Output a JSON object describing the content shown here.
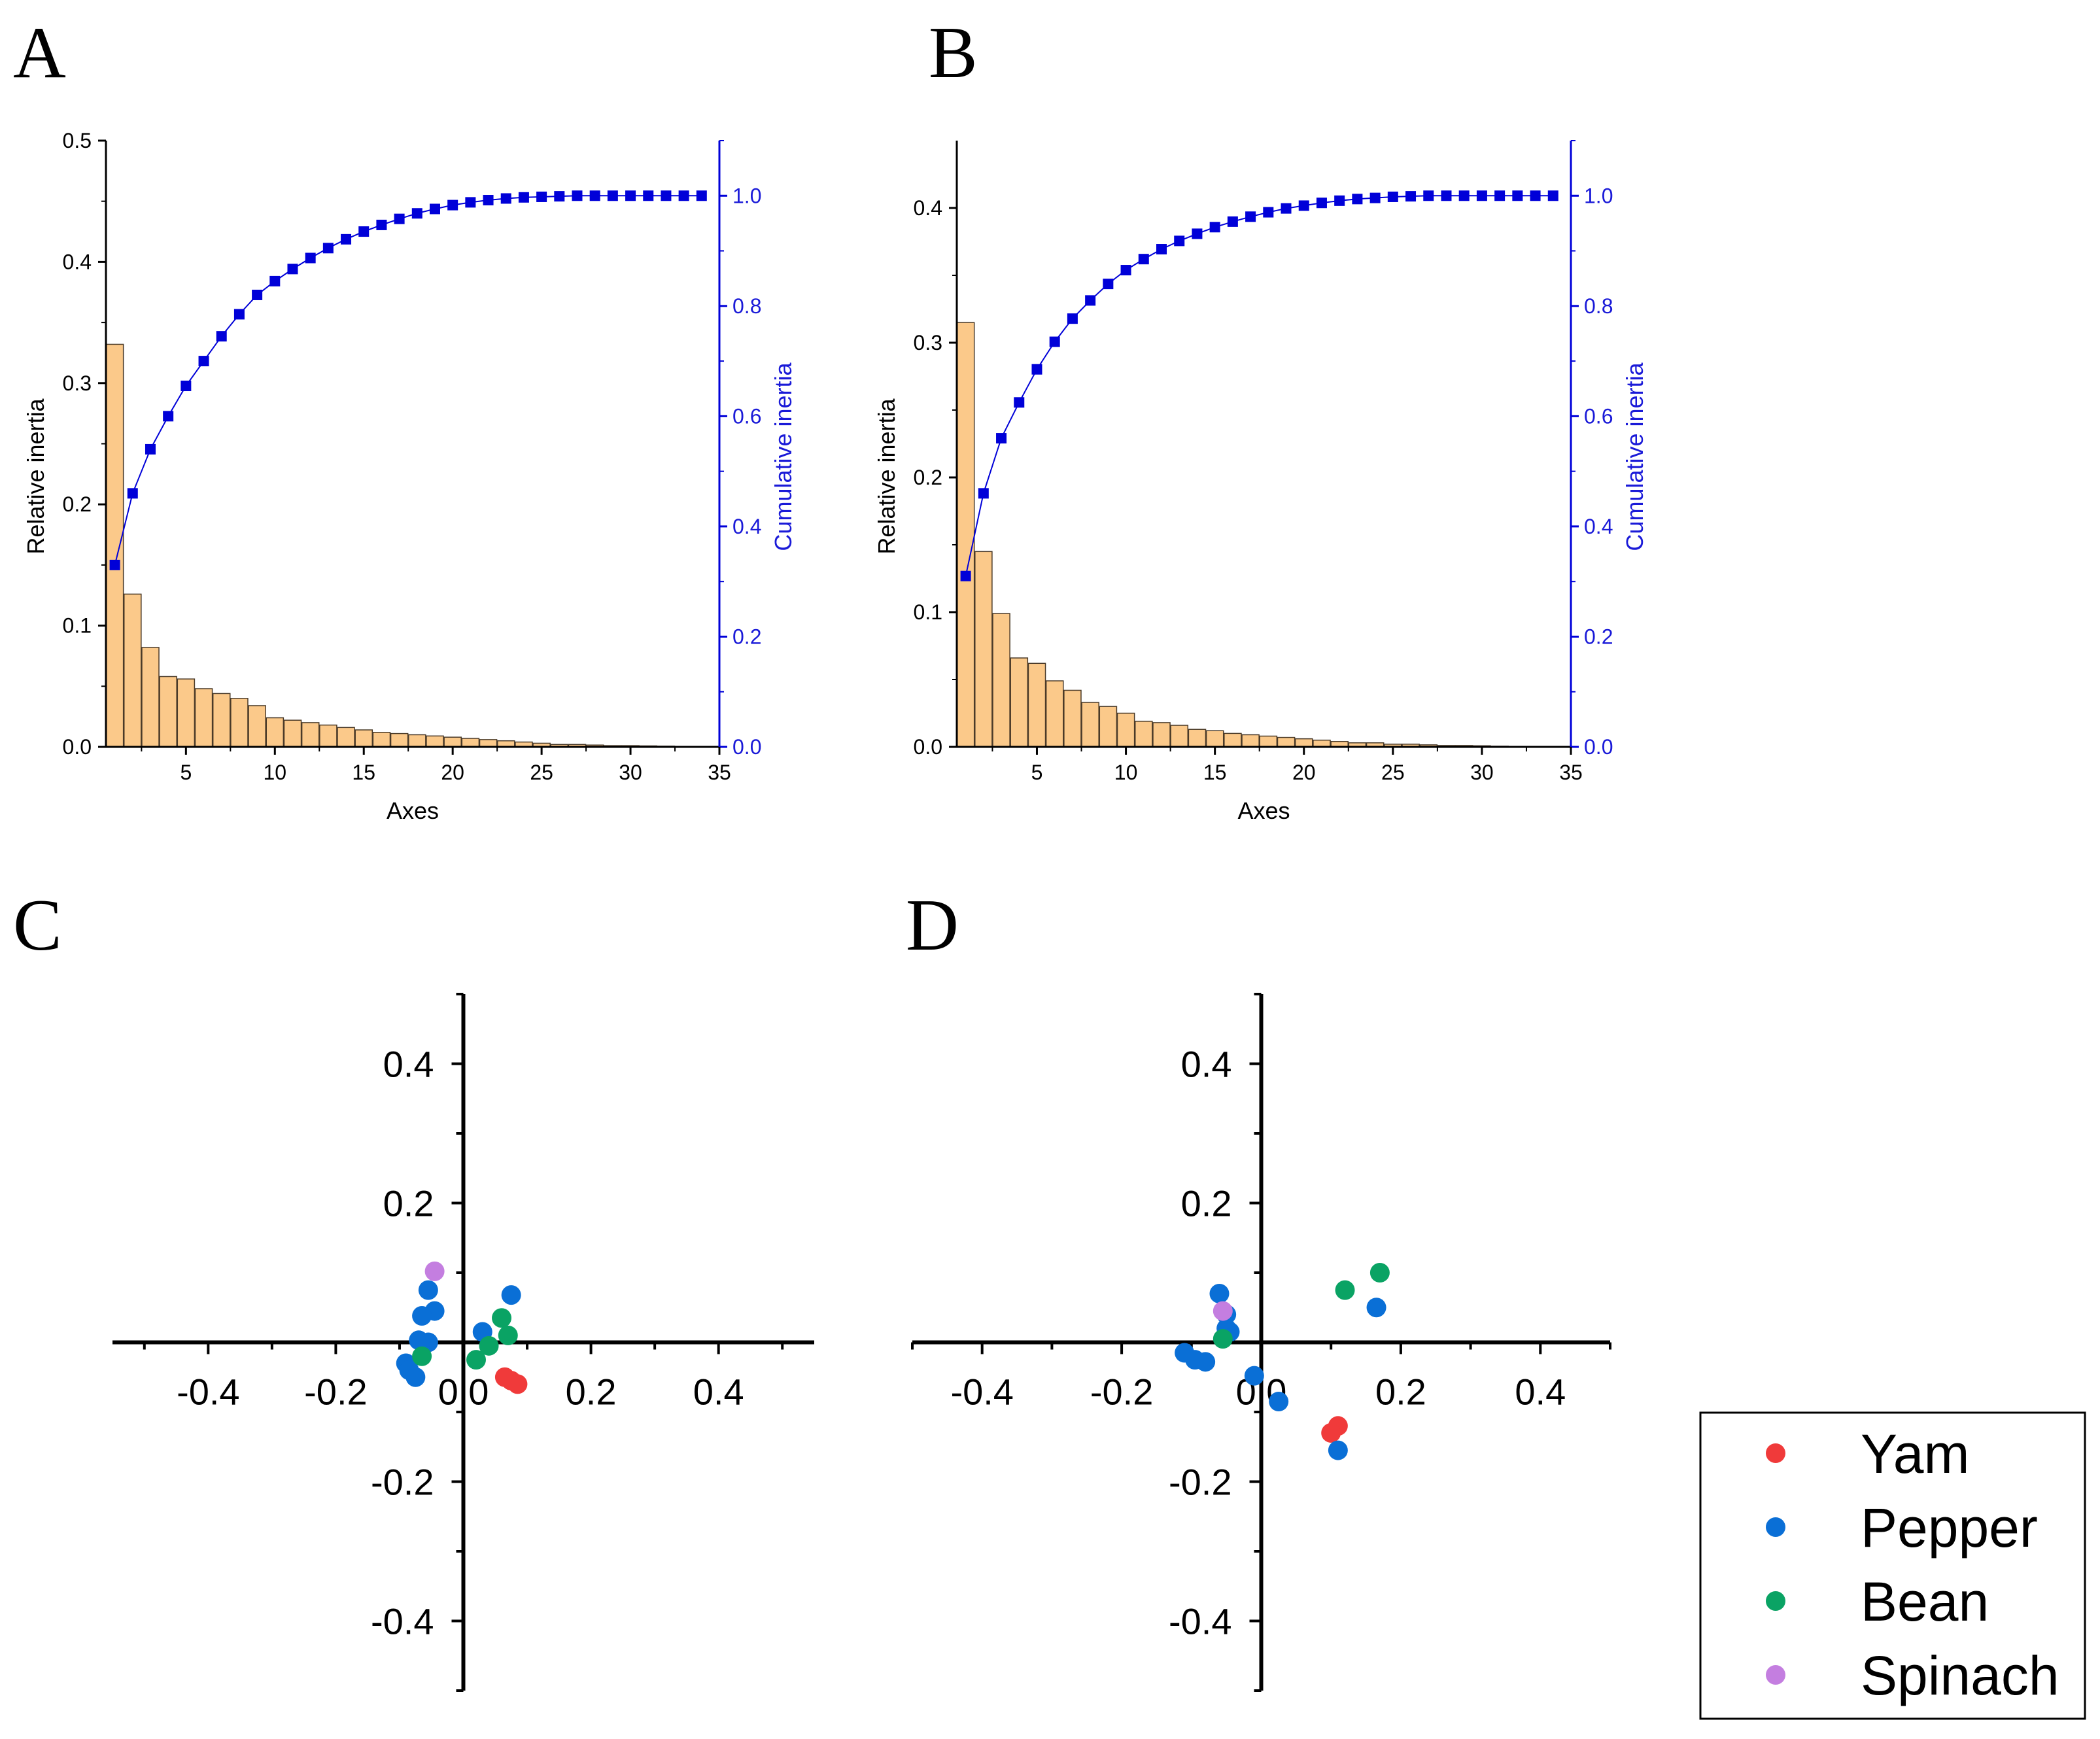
{
  "panels": [
    {
      "letter": "A"
    },
    {
      "letter": "B"
    },
    {
      "letter": "C"
    },
    {
      "letter": "D"
    }
  ],
  "colors": {
    "bar_fill": "#fbc98a",
    "bar_stroke": "#4a3a28",
    "cumulative": "#0000d8",
    "cumulative_label": "#1a1ad8",
    "yam": "#f03a3a",
    "pepper": "#0a6fd6",
    "bean": "#0aa364",
    "spinach": "#c47ee0"
  },
  "chart_data": [
    {
      "id": "A",
      "type": "bar",
      "xlabel": "Axes",
      "ylabel": "Relative inertia",
      "y2label": "Cumulative inertia",
      "xlim": [
        0.5,
        35
      ],
      "ylim": [
        0,
        0.5
      ],
      "y2lim": [
        0,
        1.1
      ],
      "xticks": [
        "5",
        "10",
        "15",
        "20",
        "25",
        "30",
        "35"
      ],
      "yticks": [
        "0.0",
        "0.1",
        "0.2",
        "0.3",
        "0.4",
        "0.5"
      ],
      "y2ticks": [
        "0.0",
        "0.2",
        "0.4",
        "0.6",
        "0.8",
        "1.0"
      ],
      "bars": [
        0.332,
        0.126,
        0.082,
        0.058,
        0.056,
        0.048,
        0.044,
        0.04,
        0.034,
        0.024,
        0.022,
        0.02,
        0.018,
        0.016,
        0.014,
        0.012,
        0.011,
        0.01,
        0.009,
        0.008,
        0.007,
        0.006,
        0.005,
        0.004,
        0.003,
        0.002,
        0.002,
        0.0015,
        0.001,
        0.001,
        0.0008,
        0.0006,
        0.0004,
        0.0002
      ],
      "cumulative": [
        0.33,
        0.46,
        0.54,
        0.6,
        0.655,
        0.7,
        0.745,
        0.785,
        0.82,
        0.845,
        0.867,
        0.887,
        0.905,
        0.921,
        0.935,
        0.947,
        0.958,
        0.968,
        0.976,
        0.983,
        0.988,
        0.992,
        0.995,
        0.997,
        0.998,
        0.999,
        1.0,
        1.0,
        1.0,
        1.0,
        1.0,
        1.0,
        1.0,
        1.0
      ]
    },
    {
      "id": "B",
      "type": "bar",
      "xlabel": "Axes",
      "ylabel": "Relative inertia",
      "y2label": "Cumulative inertia",
      "xlim": [
        0.5,
        35
      ],
      "ylim": [
        0,
        0.45
      ],
      "y2lim": [
        0,
        1.1
      ],
      "xticks": [
        "5",
        "10",
        "15",
        "20",
        "25",
        "30",
        "35"
      ],
      "yticks": [
        "0.0",
        "0.1",
        "0.2",
        "0.3",
        "0.4"
      ],
      "y2ticks": [
        "0.0",
        "0.2",
        "0.4",
        "0.6",
        "0.8",
        "1.0"
      ],
      "bars": [
        0.315,
        0.145,
        0.099,
        0.066,
        0.062,
        0.049,
        0.042,
        0.033,
        0.03,
        0.025,
        0.019,
        0.018,
        0.016,
        0.013,
        0.012,
        0.01,
        0.009,
        0.008,
        0.007,
        0.006,
        0.005,
        0.004,
        0.003,
        0.003,
        0.002,
        0.002,
        0.0015,
        0.001,
        0.001,
        0.0008,
        0.0005,
        0.0003,
        0.0002,
        0.0001
      ],
      "cumulative": [
        0.31,
        0.46,
        0.56,
        0.625,
        0.685,
        0.735,
        0.777,
        0.81,
        0.84,
        0.865,
        0.885,
        0.903,
        0.918,
        0.931,
        0.943,
        0.953,
        0.962,
        0.97,
        0.977,
        0.982,
        0.987,
        0.991,
        0.994,
        0.996,
        0.998,
        0.999,
        1.0,
        1.0,
        1.0,
        1.0,
        1.0,
        1.0,
        1.0,
        1.0
      ]
    },
    {
      "id": "C",
      "type": "scatter",
      "xlim": [
        -0.55,
        0.55
      ],
      "ylim": [
        -0.5,
        0.5
      ],
      "xticks": [
        "-0.4",
        "-0.2",
        "0.0",
        "0.2",
        "0.4"
      ],
      "yticks": [
        "0.4",
        "0.2",
        "-0.2",
        "-0.4"
      ],
      "series": [
        {
          "name": "Yam",
          "points": [
            [
              0.065,
              -0.05
            ],
            [
              0.075,
              -0.055
            ],
            [
              0.085,
              -0.06
            ]
          ]
        },
        {
          "name": "Pepper",
          "points": [
            [
              -0.055,
              0.075
            ],
            [
              -0.045,
              0.045
            ],
            [
              -0.065,
              0.038
            ],
            [
              -0.07,
              0.003
            ],
            [
              -0.055,
              0.0
            ],
            [
              -0.09,
              -0.03
            ],
            [
              -0.085,
              -0.04
            ],
            [
              -0.075,
              -0.05
            ],
            [
              0.075,
              0.068
            ],
            [
              0.03,
              0.015
            ]
          ]
        },
        {
          "name": "Bean",
          "points": [
            [
              0.06,
              0.035
            ],
            [
              0.07,
              0.01
            ],
            [
              0.04,
              -0.005
            ],
            [
              0.02,
              -0.025
            ],
            [
              -0.065,
              -0.02
            ]
          ]
        },
        {
          "name": "Spinach",
          "points": [
            [
              -0.045,
              0.102
            ]
          ]
        }
      ]
    },
    {
      "id": "D",
      "type": "scatter",
      "xlim": [
        -0.5,
        0.5
      ],
      "ylim": [
        -0.5,
        0.5
      ],
      "xticks": [
        "-0.4",
        "-0.2",
        "0.0",
        "0.2",
        "0.4"
      ],
      "yticks": [
        "0.4",
        "0.2",
        "-0.2",
        "-0.4"
      ],
      "series": [
        {
          "name": "Yam",
          "points": [
            [
              0.11,
              -0.12
            ],
            [
              0.1,
              -0.13
            ]
          ]
        },
        {
          "name": "Pepper",
          "points": [
            [
              -0.06,
              0.07
            ],
            [
              -0.05,
              0.04
            ],
            [
              -0.05,
              0.02
            ],
            [
              -0.045,
              0.015
            ],
            [
              -0.11,
              -0.015
            ],
            [
              -0.095,
              -0.025
            ],
            [
              -0.08,
              -0.028
            ],
            [
              -0.01,
              -0.048
            ],
            [
              0.025,
              -0.085
            ],
            [
              0.11,
              -0.155
            ],
            [
              0.165,
              0.05
            ]
          ]
        },
        {
          "name": "Bean",
          "points": [
            [
              0.12,
              0.075
            ],
            [
              0.17,
              0.1
            ],
            [
              -0.055,
              0.005
            ]
          ]
        },
        {
          "name": "Spinach",
          "points": [
            [
              -0.055,
              0.045
            ]
          ]
        }
      ]
    }
  ],
  "legend": {
    "items": [
      {
        "name": "Yam",
        "color_key": "yam"
      },
      {
        "name": "Pepper",
        "color_key": "pepper"
      },
      {
        "name": "Bean",
        "color_key": "bean"
      },
      {
        "name": "Spinach",
        "color_key": "spinach"
      }
    ]
  }
}
